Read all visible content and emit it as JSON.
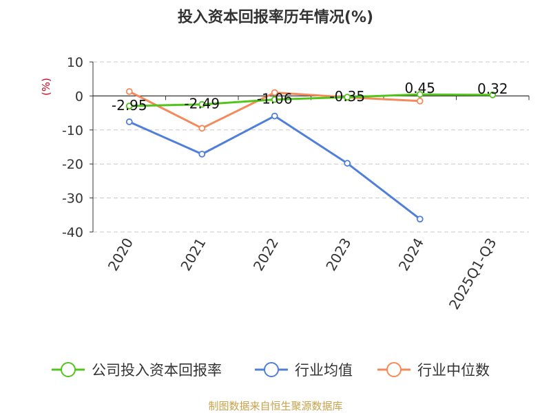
{
  "chart_data": {
    "type": "line",
    "title": "投入资本回报率历年情况(%)",
    "ylabel": "(%)",
    "xlabel": "",
    "categories": [
      "2020",
      "2021",
      "2022",
      "2023",
      "2024",
      "2025Q1-Q3"
    ],
    "ylim": [
      -40,
      10
    ],
    "yticks": [
      "10",
      "0",
      "-10",
      "-20",
      "-30",
      "-40"
    ],
    "grid": true,
    "legend_position": "bottom",
    "series": [
      {
        "name": "公司投入资本回报率",
        "color": "#52c41a",
        "values": [
          -2.95,
          -2.49,
          -1.06,
          -0.35,
          0.45,
          0.32
        ],
        "labels": [
          "-2.95",
          "-2.49",
          "-1.06",
          "-0.35",
          "0.45",
          "0.32"
        ]
      },
      {
        "name": "行业均值",
        "color": "#4f7fdb",
        "values": [
          -7.6,
          -17.1,
          -5.9,
          -19.8,
          -36.2,
          null
        ]
      },
      {
        "name": "行业中位数",
        "color": "#f5895a",
        "values": [
          1.3,
          -9.5,
          1.0,
          -0.4,
          -1.5,
          null
        ]
      }
    ],
    "ylabel_color": "#d0021b"
  },
  "footer": {
    "source": "制图数据来自恒生聚源数据库",
    "source_color": "#c8a24a"
  }
}
